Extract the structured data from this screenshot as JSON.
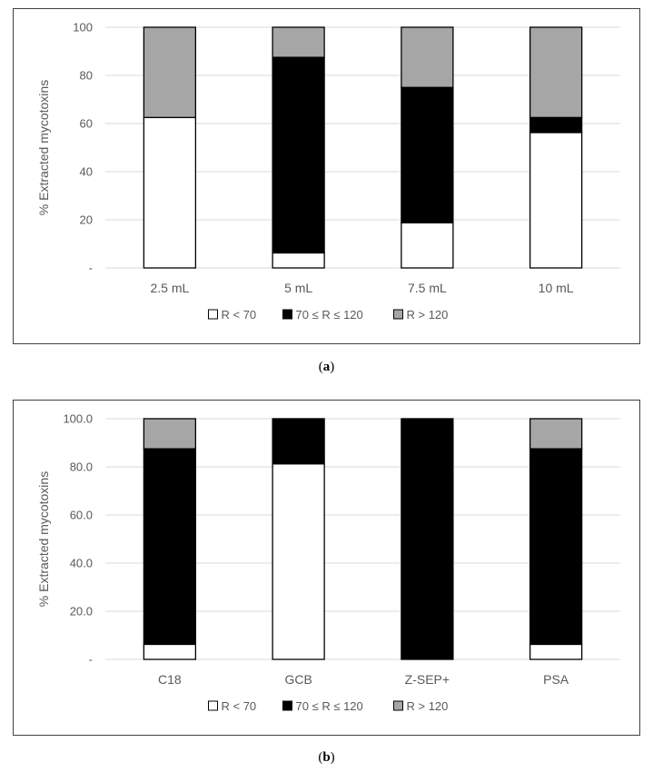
{
  "chart_data": [
    {
      "type": "bar",
      "stacked": true,
      "categories": [
        "2.5 mL",
        "5 mL",
        "7.5 mL",
        "10 mL"
      ],
      "series": [
        {
          "name": "R < 70",
          "values": [
            62.5,
            6.25,
            18.75,
            56.25
          ],
          "color": "#ffffff"
        },
        {
          "name": "70 ≤ R ≤ 120",
          "values": [
            0,
            81.25,
            56.25,
            6.25
          ],
          "color": "#000000"
        },
        {
          "name": "R > 120",
          "values": [
            37.5,
            12.5,
            25,
            37.5
          ],
          "color": "#a6a6a6"
        }
      ],
      "ylabel": "% Extracted mycotoxins",
      "ylim": [
        0,
        100
      ],
      "yticks": [
        "-",
        "20",
        "40",
        "60",
        "80",
        "100"
      ],
      "grid": true,
      "legend": "bottom",
      "caption_letter": "a"
    },
    {
      "type": "bar",
      "stacked": true,
      "categories": [
        "C18",
        "GCB",
        "Z-SEP+",
        "PSA"
      ],
      "series": [
        {
          "name": "R < 70",
          "values": [
            6.25,
            81.25,
            0,
            6.25
          ],
          "color": "#ffffff"
        },
        {
          "name": "70 ≤ R ≤ 120",
          "values": [
            81.25,
            18.75,
            100,
            81.25
          ],
          "color": "#000000"
        },
        {
          "name": "R > 120",
          "values": [
            12.5,
            0,
            0,
            12.5
          ],
          "color": "#a6a6a6"
        }
      ],
      "ylabel": "% Extracted mycotoxins",
      "ylim": [
        0,
        100
      ],
      "yticks": [
        "-",
        "20.0",
        "40.0",
        "60.0",
        "80.0",
        "100.0"
      ],
      "grid": true,
      "legend": "bottom",
      "caption_letter": "b"
    }
  ]
}
